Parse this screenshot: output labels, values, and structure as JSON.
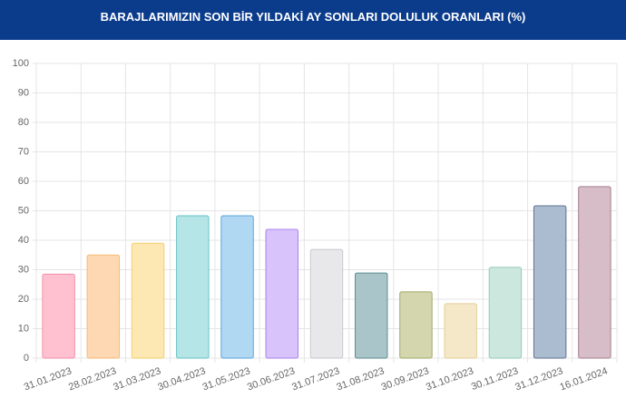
{
  "chart_data": {
    "type": "bar",
    "title": "BARAJLARIMIZIN SON BİR YILDAKİ AY SONLARI DOLULUK ORANLARI (%)",
    "categories": [
      "31.01.2023",
      "28.02.2023",
      "31.03.2023",
      "30.04.2023",
      "31.05.2023",
      "30.06.2023",
      "31.07.2023",
      "31.08.2023",
      "30.09.2023",
      "31.10.2023",
      "30.11.2023",
      "31.12.2023",
      "16.01.2024"
    ],
    "values": [
      28.5,
      35,
      39,
      48.3,
      48.3,
      43.7,
      36.9,
      28.9,
      22.5,
      18.5,
      30.8,
      51.7,
      58.2
    ],
    "colors": [
      "#ffc1d0",
      "#fdd8b2",
      "#fde7b3",
      "#b6e5e7",
      "#b1d8f2",
      "#d8c3fb",
      "#e8e8ea",
      "#aac5c9",
      "#d4d7ae",
      "#f5e8c8",
      "#cce8de",
      "#acbcd0",
      "#d7bdc7"
    ],
    "border_colors": [
      "#f090aa",
      "#f5b978",
      "#f3cf6e",
      "#66c2c5",
      "#5aa6d8",
      "#a883ee",
      "#c9c9cd",
      "#5f8b90",
      "#a3a86b",
      "#e4cf98",
      "#93cbb7",
      "#5e7390",
      "#a57f8e"
    ],
    "ylim": [
      0,
      100
    ],
    "yticks": [
      0,
      10,
      20,
      30,
      40,
      50,
      60,
      70,
      80,
      90,
      100
    ],
    "grid": true
  }
}
